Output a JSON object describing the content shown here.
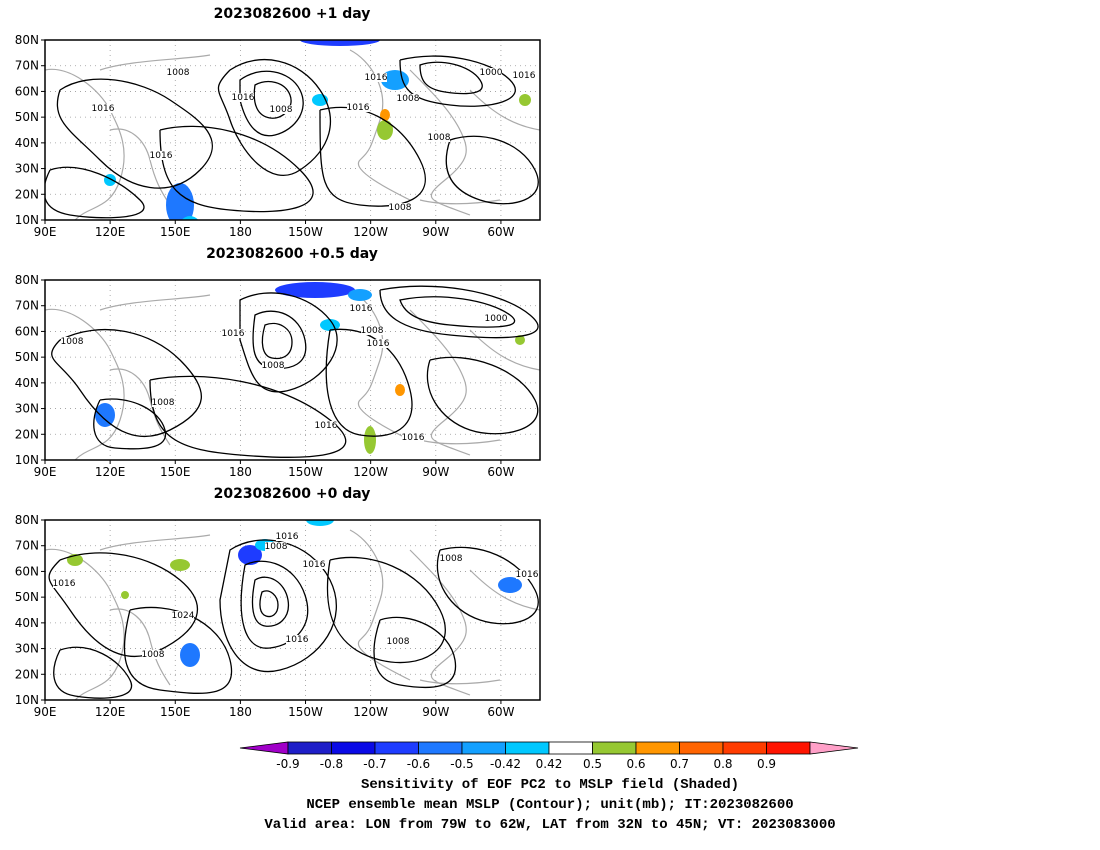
{
  "panels": [
    {
      "title": "2023082600  +1 day",
      "contour_labels": [
        "1008",
        "1016",
        "1016",
        "1008",
        "1016",
        "1008",
        "1000",
        "1016",
        "1016",
        "1008",
        "1016",
        "1008"
      ]
    },
    {
      "title": "2023082600  +0.5 day",
      "contour_labels": [
        "1016",
        "1016",
        "1008",
        "1016",
        "1000",
        "1008",
        "1008",
        "1008",
        "1016",
        "1016"
      ]
    },
    {
      "title": "2023082600  +0 day",
      "contour_labels": [
        "1016",
        "1008",
        "1016",
        "1008",
        "1016",
        "1016",
        "1024",
        "1016",
        "1008",
        "1008"
      ]
    }
  ],
  "axes": {
    "lat_ticks": [
      "80N",
      "70N",
      "60N",
      "50N",
      "40N",
      "30N",
      "20N",
      "10N"
    ],
    "lon_ticks": [
      "90E",
      "120E",
      "150E",
      "180",
      "150W",
      "120W",
      "90W",
      "60W"
    ]
  },
  "colorbar": {
    "labels": [
      "-0.9",
      "-0.8",
      "-0.7",
      "-0.6",
      "-0.5",
      "-0.42",
      "0.42",
      "0.5",
      "0.6",
      "0.7",
      "0.8",
      "0.9"
    ],
    "colors": [
      "#a000c8",
      "#1e1ec8",
      "#0a0ae6",
      "#1e3cff",
      "#1e78ff",
      "#14a0ff",
      "#00c8ff",
      "#ffffff",
      "#96c832",
      "#ff9600",
      "#ff6400",
      "#ff3c00",
      "#ff1400",
      "#ffa0c8"
    ]
  },
  "caption": {
    "line1": "Sensitivity of EOF PC2 to MSLP field (Shaded)",
    "line2": "NCEP ensemble mean MSLP (Contour); unit(mb); IT:2023082600",
    "line3": "Valid area: LON from 79W to 62W, LAT from 32N to 45N; VT: 2023083000"
  }
}
